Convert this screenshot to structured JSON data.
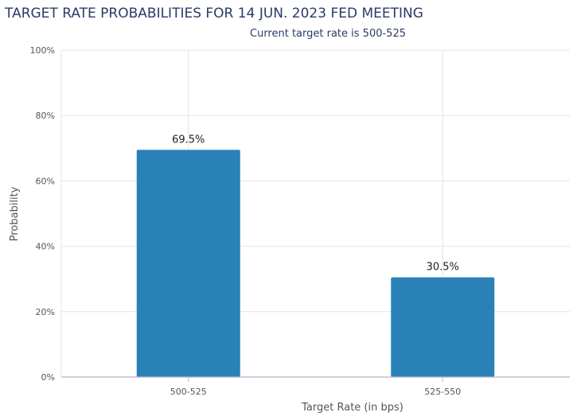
{
  "chart_data": {
    "type": "bar",
    "title": "TARGET RATE PROBABILITIES FOR 14 JUN. 2023 FED MEETING",
    "subtitle": "Current target rate is 500-525",
    "xlabel": "Target Rate (in bps)",
    "ylabel": "Probability",
    "categories": [
      "500-525",
      "525-550"
    ],
    "values": [
      69.5,
      30.5
    ],
    "value_labels": [
      "69.5%",
      "30.5%"
    ],
    "ylim": [
      0,
      100
    ],
    "yticks": [
      "0%",
      "20%",
      "40%",
      "60%",
      "80%",
      "100%"
    ],
    "grid": true,
    "legend": "none",
    "bar_color": "#2a81b8"
  }
}
